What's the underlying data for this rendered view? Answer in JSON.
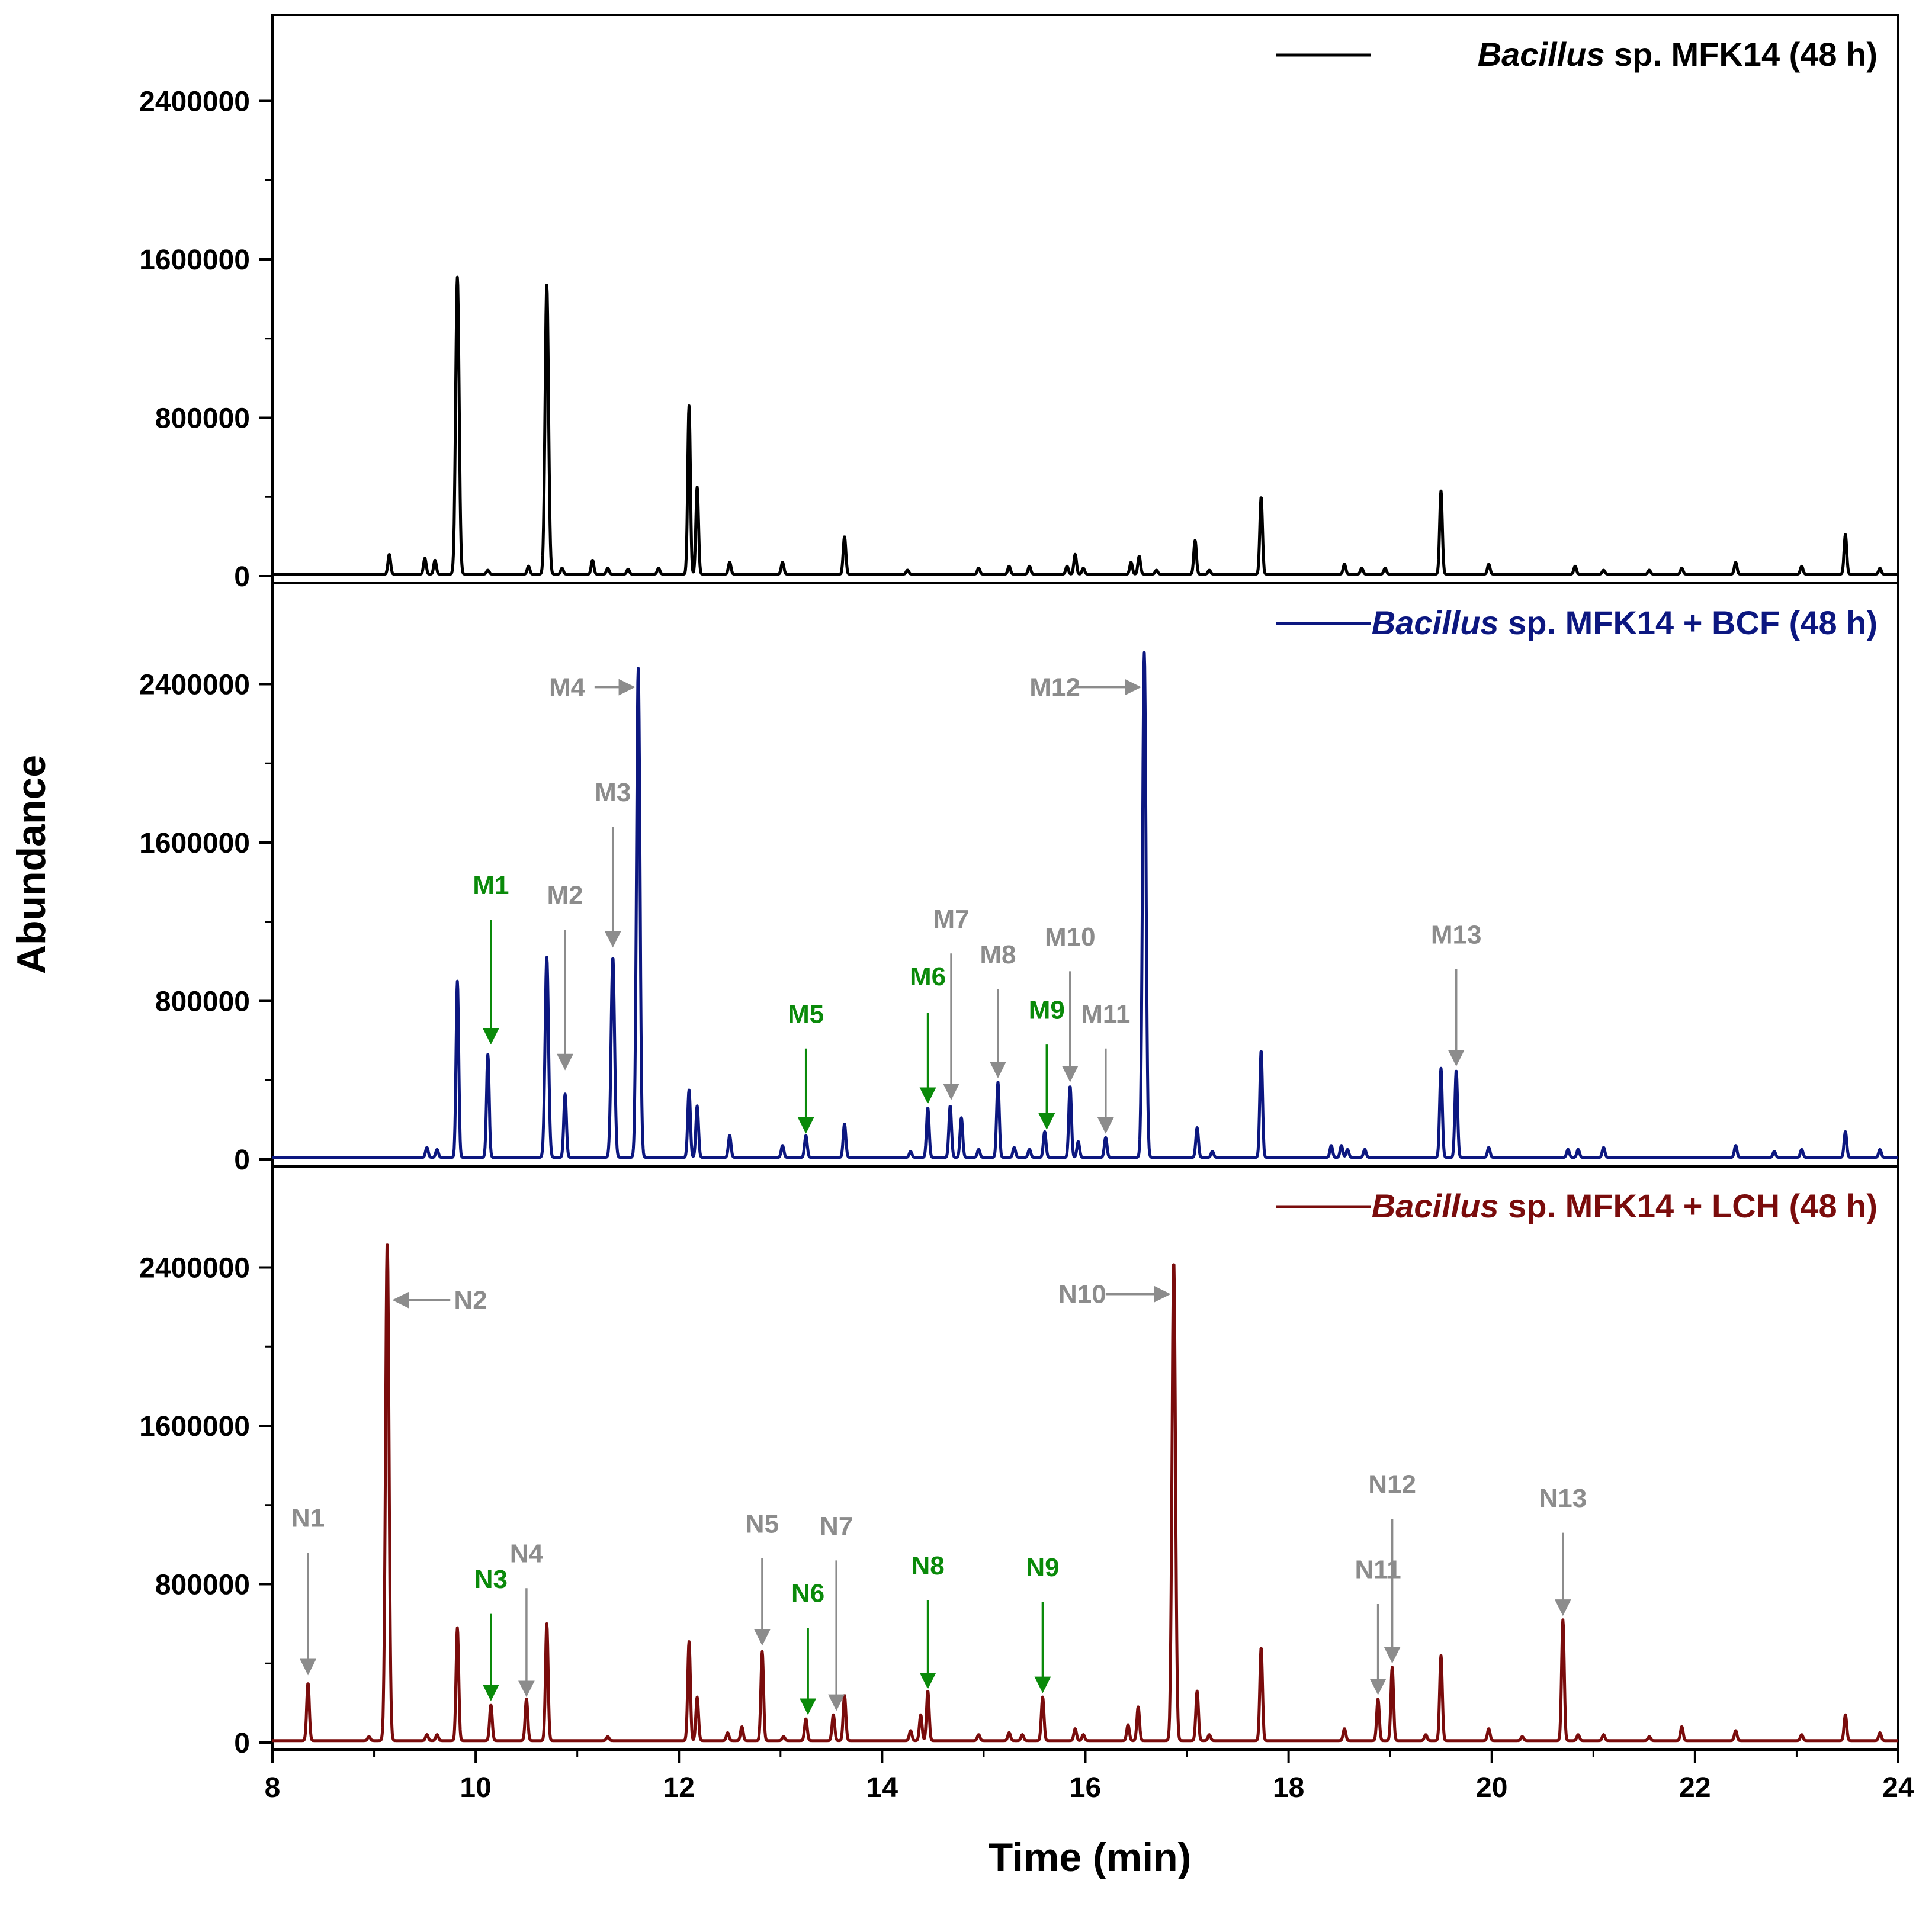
{
  "chart_data": {
    "type": "line",
    "xlabel": "Time (min)",
    "ylabel": "Abundance",
    "xlim": [
      8,
      24
    ],
    "x_ticks": [
      8,
      10,
      12,
      14,
      16,
      18,
      20,
      22,
      24
    ],
    "x_tick_labels": [
      "8",
      "10",
      "12",
      "14",
      "16",
      "18",
      "20",
      "22",
      "24"
    ],
    "colors": {
      "gray": "#8c8c8c",
      "green": "#0a8a0a"
    },
    "panels": [
      {
        "id": "control",
        "legend": {
          "italic": "Bacillus",
          "rest": " sp. MFK14 (48 h)"
        },
        "color": "#000000",
        "ylim": [
          0,
          2850000
        ],
        "y_ticks": [
          0,
          800000,
          1600000,
          2400000
        ],
        "y_tick_labels": [
          "0",
          "800000",
          "1600000",
          "2400000"
        ],
        "peaks": [
          [
            9.15,
            100000
          ],
          [
            9.5,
            80000
          ],
          [
            9.6,
            70000
          ],
          [
            9.82,
            1500000
          ],
          [
            10.12,
            20000
          ],
          [
            10.52,
            40000
          ],
          [
            10.7,
            1460000
          ],
          [
            10.85,
            30000
          ],
          [
            11.15,
            70000
          ],
          [
            11.3,
            30000
          ],
          [
            11.5,
            25000
          ],
          [
            11.8,
            30000
          ],
          [
            12.1,
            850000
          ],
          [
            12.18,
            440000
          ],
          [
            12.5,
            60000
          ],
          [
            13.02,
            60000
          ],
          [
            13.63,
            190000
          ],
          [
            14.25,
            20000
          ],
          [
            14.95,
            30000
          ],
          [
            15.25,
            40000
          ],
          [
            15.45,
            40000
          ],
          [
            15.82,
            40000
          ],
          [
            15.9,
            100000
          ],
          [
            15.98,
            30000
          ],
          [
            16.45,
            60000
          ],
          [
            16.53,
            90000
          ],
          [
            16.7,
            20000
          ],
          [
            17.08,
            170000
          ],
          [
            17.22,
            20000
          ],
          [
            17.73,
            390000
          ],
          [
            18.55,
            50000
          ],
          [
            18.72,
            30000
          ],
          [
            18.95,
            30000
          ],
          [
            19.5,
            420000
          ],
          [
            19.97,
            50000
          ],
          [
            20.82,
            40000
          ],
          [
            21.1,
            20000
          ],
          [
            21.55,
            20000
          ],
          [
            21.87,
            30000
          ],
          [
            22.4,
            60000
          ],
          [
            23.05,
            40000
          ],
          [
            23.48,
            200000
          ],
          [
            23.82,
            30000
          ]
        ],
        "annotations": []
      },
      {
        "id": "bcf",
        "legend": {
          "italic": "Bacillus",
          "rest": " sp. MFK14 + BCF (48 h)"
        },
        "color": "#0c1780",
        "ylim": [
          0,
          2850000
        ],
        "y_ticks": [
          0,
          800000,
          1600000,
          2400000
        ],
        "y_tick_labels": [
          "0",
          "800000",
          "1600000",
          "2400000"
        ],
        "peaks": [
          [
            9.52,
            50000
          ],
          [
            9.62,
            40000
          ],
          [
            9.82,
            890000
          ],
          [
            10.12,
            520000
          ],
          [
            10.7,
            1010000
          ],
          [
            10.88,
            320000
          ],
          [
            11.35,
            1010000
          ],
          [
            11.6,
            2470000
          ],
          [
            12.1,
            340000
          ],
          [
            12.18,
            260000
          ],
          [
            12.5,
            110000
          ],
          [
            13.02,
            60000
          ],
          [
            13.25,
            110000
          ],
          [
            13.63,
            170000
          ],
          [
            14.28,
            30000
          ],
          [
            14.45,
            250000
          ],
          [
            14.67,
            260000
          ],
          [
            14.78,
            200000
          ],
          [
            14.95,
            40000
          ],
          [
            15.14,
            380000
          ],
          [
            15.3,
            50000
          ],
          [
            15.45,
            40000
          ],
          [
            15.6,
            130000
          ],
          [
            15.85,
            360000
          ],
          [
            15.93,
            80000
          ],
          [
            16.2,
            100000
          ],
          [
            16.58,
            2550000
          ],
          [
            17.1,
            150000
          ],
          [
            17.25,
            30000
          ],
          [
            17.73,
            540000
          ],
          [
            18.42,
            60000
          ],
          [
            18.52,
            60000
          ],
          [
            18.58,
            40000
          ],
          [
            18.75,
            40000
          ],
          [
            19.5,
            450000
          ],
          [
            19.65,
            440000
          ],
          [
            19.97,
            50000
          ],
          [
            20.75,
            40000
          ],
          [
            20.85,
            40000
          ],
          [
            21.1,
            50000
          ],
          [
            22.4,
            60000
          ],
          [
            22.78,
            30000
          ],
          [
            23.05,
            40000
          ],
          [
            23.48,
            130000
          ],
          [
            23.82,
            40000
          ]
        ],
        "annotations": [
          {
            "label": "M1",
            "color": "green",
            "style": "down",
            "x": 10.15,
            "ty": 1340000,
            "y1": 1210000,
            "y2": 590000
          },
          {
            "label": "M2",
            "color": "gray",
            "style": "down",
            "x": 10.88,
            "ty": 1290000,
            "y1": 1160000,
            "y2": 460000
          },
          {
            "label": "M3",
            "color": "gray",
            "style": "down",
            "x": 11.35,
            "ty": 1810000,
            "y1": 1680000,
            "y2": 1080000
          },
          {
            "label": "M4",
            "color": "gray",
            "style": "right",
            "ty": 2340000,
            "tx": 10.9,
            "x1": 11.17,
            "x2": 11.55
          },
          {
            "label": "M5",
            "color": "green",
            "style": "down",
            "x": 13.25,
            "ty": 690000,
            "y1": 560000,
            "y2": 140000
          },
          {
            "label": "M6",
            "color": "green",
            "style": "down",
            "x": 14.45,
            "ty": 880000,
            "y1": 740000,
            "y2": 290000
          },
          {
            "label": "M7",
            "color": "gray",
            "style": "down",
            "x": 14.68,
            "ty": 1170000,
            "y1": 1040000,
            "y2": 310000
          },
          {
            "label": "M8",
            "color": "gray",
            "style": "down",
            "x": 15.14,
            "ty": 990000,
            "y1": 860000,
            "y2": 420000
          },
          {
            "label": "M9",
            "color": "green",
            "style": "down",
            "x": 15.62,
            "ty": 710000,
            "y1": 580000,
            "y2": 160000
          },
          {
            "label": "M10",
            "color": "gray",
            "style": "down",
            "x": 15.85,
            "ty": 1080000,
            "y1": 950000,
            "y2": 400000
          },
          {
            "label": "M11",
            "color": "gray",
            "style": "down",
            "x": 16.2,
            "ty": 690000,
            "y1": 560000,
            "y2": 140000
          },
          {
            "label": "M12",
            "color": "gray",
            "style": "right",
            "ty": 2340000,
            "tx": 15.7,
            "x1": 15.88,
            "x2": 16.53
          },
          {
            "label": "M13",
            "color": "gray",
            "style": "down",
            "x": 19.65,
            "ty": 1090000,
            "y1": 960000,
            "y2": 480000
          }
        ]
      },
      {
        "id": "lch",
        "legend": {
          "italic": "Bacillus",
          "rest": " sp. MFK14 + LCH (48 h)"
        },
        "color": "#7a0c0c",
        "ylim": [
          0,
          2850000
        ],
        "y_ticks": [
          0,
          800000,
          1600000,
          2400000
        ],
        "y_tick_labels": [
          "0",
          "800000",
          "1600000",
          "2400000"
        ],
        "peaks": [
          [
            8.35,
            290000
          ],
          [
            8.95,
            20000
          ],
          [
            9.13,
            2520000
          ],
          [
            9.52,
            30000
          ],
          [
            9.62,
            30000
          ],
          [
            9.82,
            570000
          ],
          [
            10.15,
            180000
          ],
          [
            10.5,
            210000
          ],
          [
            10.7,
            590000
          ],
          [
            11.3,
            20000
          ],
          [
            12.1,
            500000
          ],
          [
            12.18,
            220000
          ],
          [
            12.48,
            40000
          ],
          [
            12.62,
            70000
          ],
          [
            12.82,
            450000
          ],
          [
            13.03,
            20000
          ],
          [
            13.25,
            110000
          ],
          [
            13.52,
            130000
          ],
          [
            13.63,
            230000
          ],
          [
            14.28,
            50000
          ],
          [
            14.38,
            130000
          ],
          [
            14.45,
            250000
          ],
          [
            14.95,
            30000
          ],
          [
            15.25,
            40000
          ],
          [
            15.38,
            30000
          ],
          [
            15.58,
            220000
          ],
          [
            15.9,
            60000
          ],
          [
            15.98,
            30000
          ],
          [
            16.42,
            80000
          ],
          [
            16.52,
            170000
          ],
          [
            16.87,
            2420000
          ],
          [
            17.1,
            250000
          ],
          [
            17.22,
            30000
          ],
          [
            17.73,
            470000
          ],
          [
            18.55,
            60000
          ],
          [
            18.88,
            210000
          ],
          [
            19.02,
            370000
          ],
          [
            19.35,
            30000
          ],
          [
            19.5,
            430000
          ],
          [
            19.97,
            60000
          ],
          [
            20.3,
            20000
          ],
          [
            20.7,
            610000
          ],
          [
            20.85,
            30000
          ],
          [
            21.1,
            30000
          ],
          [
            21.55,
            20000
          ],
          [
            21.87,
            70000
          ],
          [
            22.4,
            50000
          ],
          [
            23.05,
            30000
          ],
          [
            23.48,
            130000
          ],
          [
            23.82,
            40000
          ]
        ],
        "annotations": [
          {
            "label": "N1",
            "color": "gray",
            "style": "down",
            "x": 8.35,
            "ty": 1090000,
            "y1": 960000,
            "y2": 350000
          },
          {
            "label": "N2",
            "color": "gray",
            "style": "left",
            "ty": 2190000,
            "tx": 9.95,
            "x1": 9.75,
            "x2": 9.2
          },
          {
            "label": "N3",
            "color": "green",
            "style": "down",
            "x": 10.15,
            "ty": 780000,
            "y1": 650000,
            "y2": 220000
          },
          {
            "label": "N4",
            "color": "gray",
            "style": "down",
            "x": 10.5,
            "ty": 910000,
            "y1": 780000,
            "y2": 240000
          },
          {
            "label": "N5",
            "color": "gray",
            "style": "down",
            "x": 12.82,
            "ty": 1060000,
            "y1": 930000,
            "y2": 500000
          },
          {
            "label": "N6",
            "color": "green",
            "style": "down",
            "x": 13.27,
            "ty": 710000,
            "y1": 580000,
            "y2": 150000
          },
          {
            "label": "N7",
            "color": "gray",
            "style": "down",
            "x": 13.55,
            "ty": 1050000,
            "y1": 920000,
            "y2": 170000
          },
          {
            "label": "N8",
            "color": "green",
            "style": "down",
            "x": 14.45,
            "ty": 850000,
            "y1": 720000,
            "y2": 280000
          },
          {
            "label": "N9",
            "color": "green",
            "style": "down",
            "x": 15.58,
            "ty": 840000,
            "y1": 710000,
            "y2": 260000
          },
          {
            "label": "N10",
            "color": "gray",
            "style": "right",
            "ty": 2220000,
            "tx": 15.97,
            "x1": 16.2,
            "x2": 16.82
          },
          {
            "label": "N11",
            "color": "gray",
            "style": "down",
            "x": 18.88,
            "ty": 830000,
            "y1": 700000,
            "y2": 250000
          },
          {
            "label": "N12",
            "color": "gray",
            "style": "down",
            "x": 19.02,
            "ty": 1260000,
            "y1": 1130000,
            "y2": 410000
          },
          {
            "label": "N13",
            "color": "gray",
            "style": "down",
            "x": 20.7,
            "ty": 1190000,
            "y1": 1060000,
            "y2": 650000
          }
        ]
      }
    ]
  }
}
